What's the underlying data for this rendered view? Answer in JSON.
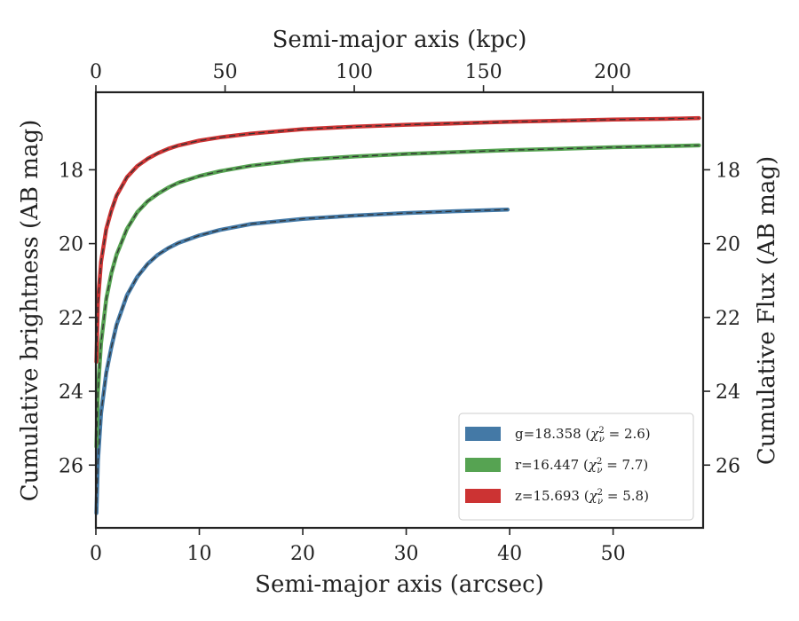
{
  "chart_data": {
    "type": "line",
    "xlabel": "Semi-major axis (arcsec)",
    "x2label": "Semi-major axis (kpc)",
    "ylabel": "Cumulative brightness (AB mag)",
    "y2label": "Cumulative Flux (AB mag)",
    "xlim": [
      0,
      58.7
    ],
    "ylim": [
      27.7,
      15.9
    ],
    "x2lim": [
      0,
      235
    ],
    "y_inverted": true,
    "xticks": [
      "0",
      "10",
      "20",
      "30",
      "40",
      "50"
    ],
    "x2ticks": [
      "0",
      "50",
      "100",
      "150",
      "200"
    ],
    "yticks": [
      "18",
      "20",
      "22",
      "24",
      "26"
    ],
    "y2ticks": [
      "18",
      "20",
      "22",
      "24",
      "26"
    ],
    "legend_position": "lower-right",
    "model_line": "dashed",
    "series": [
      {
        "name": "g=18.358 (χν² = 2.6)",
        "label_main": "g=18.358 (",
        "label_chi": "χ",
        "label_nu": "ν",
        "label_sup": "2",
        "label_rest": " = 2.6)",
        "color": "#4479a6",
        "x": [
          0.05,
          0.2,
          0.5,
          1,
          1.5,
          2,
          3,
          4,
          5,
          6,
          7,
          8,
          10,
          12,
          15,
          20,
          25,
          30,
          35,
          39.8
        ],
        "y": [
          27.3,
          25.9,
          24.6,
          23.5,
          22.8,
          22.2,
          21.4,
          20.9,
          20.55,
          20.3,
          20.12,
          19.98,
          19.78,
          19.63,
          19.47,
          19.33,
          19.24,
          19.17,
          19.12,
          19.08
        ]
      },
      {
        "name": "r=16.447 (χν² = 7.7)",
        "label_main": "r=16.447 (",
        "label_chi": "χ",
        "label_nu": "ν",
        "label_sup": "2",
        "label_rest": " = 7.7)",
        "color": "#56a352",
        "x": [
          0.05,
          0.2,
          0.5,
          1,
          1.5,
          2,
          3,
          4,
          5,
          6,
          7,
          8,
          10,
          12,
          15,
          20,
          25,
          30,
          35,
          40,
          45,
          50,
          55,
          58.3
        ],
        "y": [
          25.5,
          24.0,
          22.7,
          21.5,
          20.8,
          20.3,
          19.6,
          19.15,
          18.85,
          18.65,
          18.48,
          18.35,
          18.17,
          18.04,
          17.89,
          17.73,
          17.64,
          17.57,
          17.52,
          17.47,
          17.43,
          17.39,
          17.36,
          17.34
        ]
      },
      {
        "name": "z=15.693 (χν² = 5.8)",
        "label_main": "z=15.693 (",
        "label_chi": "χ",
        "label_nu": "ν",
        "label_sup": "2",
        "label_rest": " = 5.8)",
        "color": "#cc3333",
        "x": [
          0.05,
          0.2,
          0.5,
          1,
          1.5,
          2,
          3,
          4,
          5,
          6,
          7,
          8,
          10,
          12,
          15,
          20,
          25,
          30,
          35,
          40,
          45,
          50,
          55,
          58.3
        ],
        "y": [
          23.2,
          21.6,
          20.5,
          19.6,
          19.1,
          18.7,
          18.2,
          17.9,
          17.7,
          17.55,
          17.43,
          17.34,
          17.21,
          17.12,
          17.02,
          16.9,
          16.83,
          16.78,
          16.74,
          16.7,
          16.67,
          16.64,
          16.62,
          16.6
        ]
      }
    ]
  }
}
